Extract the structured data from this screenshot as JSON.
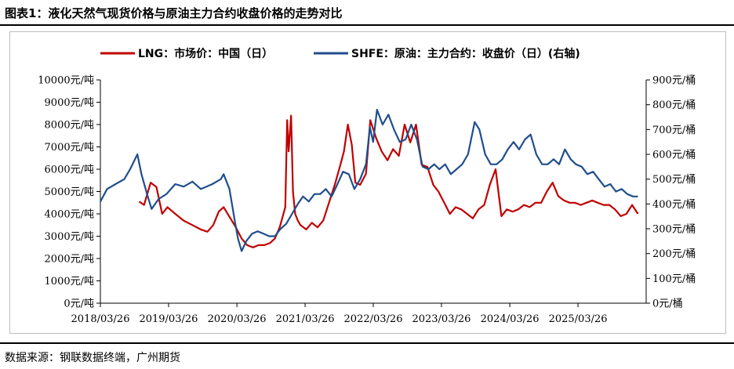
{
  "figure": {
    "title": "图表1：液化天然气现货价格与原油主力合约收盘价格的走势对比",
    "source": "数据来源：钢联数据终端，广州期货"
  },
  "chart_data": {
    "type": "line",
    "x_tick_labels": [
      "2018/03/26",
      "2019/03/26",
      "2020/03/26",
      "2021/03/26",
      "2022/03/26",
      "2023/03/26",
      "2024/03/26",
      "2025/03/26"
    ],
    "x_range": [
      "2018/03/26",
      "2026/03/26"
    ],
    "y_left": {
      "ylim": [
        0,
        10000
      ],
      "tick_labels": [
        "0元/吨",
        "1000元/吨",
        "2000元/吨",
        "3000元/吨",
        "4000元/吨",
        "5000元/吨",
        "6000元/吨",
        "7000元/吨",
        "8000元/吨",
        "9000元/吨",
        "10000元/吨"
      ]
    },
    "y_right": {
      "ylim": [
        0,
        900
      ],
      "tick_labels": [
        "0元/桶",
        "100元/桶",
        "200元/桶",
        "300元/桶",
        "400元/桶",
        "500元/桶",
        "600元/桶",
        "700元/桶",
        "800元/桶",
        "900元/桶"
      ]
    },
    "grid": false,
    "legend_position": "top",
    "series": [
      {
        "name": "LNG：市场价：中国（日）",
        "axis": "left",
        "color": "#c00000",
        "x": [
          "2018/10/20",
          "2018/11/15",
          "2018/12/20",
          "2019/01/20",
          "2019/02/20",
          "2019/03/20",
          "2019/05/01",
          "2019/06/15",
          "2019/08/01",
          "2019/09/15",
          "2019/10/20",
          "2019/11/20",
          "2019/12/20",
          "2020/01/15",
          "2020/02/20",
          "2020/03/20",
          "2020/04/20",
          "2020/05/20",
          "2020/06/20",
          "2020/07/20",
          "2020/08/20",
          "2020/09/20",
          "2020/10/15",
          "2020/11/10",
          "2020/12/10",
          "2020/12/20",
          "2020/12/28",
          "2021/01/10",
          "2021/01/20",
          "2021/02/01",
          "2021/02/15",
          "2021/03/01",
          "2021/04/01",
          "2021/05/01",
          "2021/06/01",
          "2021/07/01",
          "2021/08/01",
          "2021/09/01",
          "2021/10/01",
          "2021/10/20",
          "2021/11/10",
          "2021/12/01",
          "2021/12/20",
          "2022/01/15",
          "2022/02/15",
          "2022/03/10",
          "2022/04/10",
          "2022/05/10",
          "2022/06/10",
          "2022/07/10",
          "2022/08/10",
          "2022/09/10",
          "2022/10/10",
          "2022/11/10",
          "2022/12/10",
          "2023/01/10",
          "2023/02/10",
          "2023/03/10",
          "2023/04/10",
          "2023/05/10",
          "2023/06/10",
          "2023/07/10",
          "2023/08/10",
          "2023/09/10",
          "2023/10/10",
          "2023/11/10",
          "2023/12/10",
          "2024/01/10",
          "2024/02/10",
          "2024/03/10",
          "2024/04/10",
          "2024/05/10",
          "2024/06/10",
          "2024/07/10",
          "2024/08/10",
          "2024/09/10",
          "2024/10/10",
          "2024/11/10",
          "2024/12/10",
          "2025/01/10",
          "2025/02/10",
          "2025/03/10",
          "2025/04/10",
          "2025/05/10",
          "2025/06/10",
          "2025/07/10",
          "2025/08/10",
          "2025/09/10",
          "2025/10/10",
          "2025/11/10",
          "2025/12/10",
          "2026/01/10",
          "2026/02/10"
        ],
        "values": [
          4550,
          4400,
          5400,
          5200,
          4000,
          4300,
          4000,
          3700,
          3500,
          3300,
          3200,
          3500,
          4100,
          4300,
          3800,
          3400,
          2900,
          2600,
          2500,
          2600,
          2600,
          2700,
          2900,
          3400,
          4300,
          8200,
          6800,
          8400,
          5000,
          4000,
          3700,
          3500,
          3300,
          3600,
          3400,
          3700,
          4500,
          5300,
          6200,
          6800,
          8000,
          7100,
          5400,
          5300,
          5800,
          8200,
          7400,
          6800,
          6400,
          6900,
          6600,
          8000,
          7200,
          8000,
          6200,
          6100,
          5300,
          5000,
          4500,
          4000,
          4300,
          4200,
          4000,
          3800,
          4200,
          4400,
          5300,
          6000,
          3900,
          4200,
          4100,
          4200,
          4400,
          4300,
          4500,
          4500,
          5000,
          5400,
          4800,
          4600,
          4500,
          4500,
          4400,
          4500,
          4600,
          4500,
          4400,
          4400,
          4200,
          3900,
          4000,
          4400,
          4000
        ]
      },
      {
        "name": "SHFE：原油：主力合约：收盘价（日）(右轴)",
        "axis": "right",
        "color": "#1f4e8c",
        "x": [
          "2018/03/26",
          "2018/05/01",
          "2018/06/15",
          "2018/08/01",
          "2018/09/01",
          "2018/10/10",
          "2018/11/01",
          "2018/12/01",
          "2018/12/25",
          "2019/02/01",
          "2019/03/15",
          "2019/05/01",
          "2019/06/15",
          "2019/08/01",
          "2019/09/15",
          "2019/10/15",
          "2019/11/15",
          "2019/12/31",
          "2020/01/15",
          "2020/02/15",
          "2020/03/15",
          "2020/04/01",
          "2020/04/20",
          "2020/05/15",
          "2020/06/15",
          "2020/07/15",
          "2020/08/15",
          "2020/09/15",
          "2020/10/15",
          "2020/11/15",
          "2020/12/15",
          "2021/01/15",
          "2021/02/15",
          "2021/03/15",
          "2021/04/15",
          "2021/05/15",
          "2021/06/15",
          "2021/07/15",
          "2021/08/15",
          "2021/09/15",
          "2021/10/15",
          "2021/11/15",
          "2021/12/15",
          "2022/01/15",
          "2022/02/15",
          "2022/03/08",
          "2022/03/25",
          "2022/04/15",
          "2022/05/15",
          "2022/06/15",
          "2022/07/15",
          "2022/08/15",
          "2022/09/15",
          "2022/10/15",
          "2022/11/15",
          "2022/12/15",
          "2023/01/15",
          "2023/02/15",
          "2023/03/15",
          "2023/04/15",
          "2023/05/15",
          "2023/06/15",
          "2023/07/15",
          "2023/08/15",
          "2023/09/20",
          "2023/10/15",
          "2023/11/15",
          "2023/12/15",
          "2024/01/15",
          "2024/02/15",
          "2024/03/15",
          "2024/04/15",
          "2024/05/15",
          "2024/06/15",
          "2024/07/15",
          "2024/08/15",
          "2024/09/15",
          "2024/10/15",
          "2024/11/15",
          "2024/12/15",
          "2025/01/15",
          "2025/02/15",
          "2025/03/15",
          "2025/04/15",
          "2025/05/15",
          "2025/06/15",
          "2025/07/15",
          "2025/08/15",
          "2025/09/15",
          "2025/10/15",
          "2025/11/15",
          "2025/12/15",
          "2026/01/15",
          "2026/02/10"
        ],
        "values": [
          410,
          460,
          480,
          500,
          540,
          600,
          520,
          440,
          380,
          420,
          440,
          480,
          470,
          490,
          460,
          470,
          480,
          500,
          520,
          460,
          330,
          260,
          210,
          250,
          280,
          290,
          280,
          270,
          270,
          300,
          320,
          360,
          400,
          430,
          410,
          440,
          440,
          460,
          430,
          480,
          530,
          520,
          460,
          500,
          560,
          710,
          650,
          780,
          720,
          760,
          700,
          650,
          660,
          720,
          660,
          550,
          540,
          560,
          540,
          560,
          520,
          540,
          560,
          600,
          730,
          700,
          600,
          560,
          560,
          580,
          620,
          650,
          620,
          660,
          680,
          600,
          560,
          560,
          580,
          560,
          620,
          580,
          560,
          550,
          520,
          530,
          500,
          470,
          480,
          450,
          460,
          440,
          430,
          430
        ]
      }
    ]
  }
}
